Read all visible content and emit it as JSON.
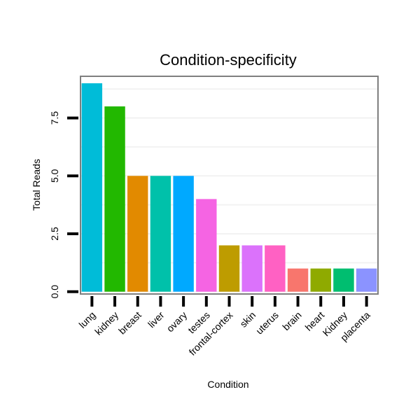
{
  "chart_data": {
    "type": "bar",
    "title": "Condition-specificity",
    "xlabel": "Condition",
    "ylabel": "Total Reads",
    "ylim": [
      -0.1,
      9.3
    ],
    "yticks": [
      0,
      2.5,
      5,
      7.5
    ],
    "ytick_labels": [
      "0.0",
      "2.5",
      "5.0",
      "7.5"
    ],
    "grid": true,
    "legend": "none",
    "categories": [
      "lung",
      "kidney",
      "breast",
      "liver",
      "ovary",
      "testes",
      "frontal-cortex",
      "skin",
      "uterus",
      "brain",
      "heart",
      "Kidney",
      "placenta"
    ],
    "values": [
      9,
      8,
      5,
      5,
      5,
      4,
      2,
      2,
      2,
      1,
      1,
      1,
      1
    ],
    "colors": [
      "#00BCD8",
      "#22B800",
      "#E28A00",
      "#00C1AA",
      "#00A9FF",
      "#F564E3",
      "#BE9C00",
      "#DB72FB",
      "#FF61C3",
      "#F8766D",
      "#8FAA00",
      "#00BE70",
      "#8B93FF"
    ]
  }
}
